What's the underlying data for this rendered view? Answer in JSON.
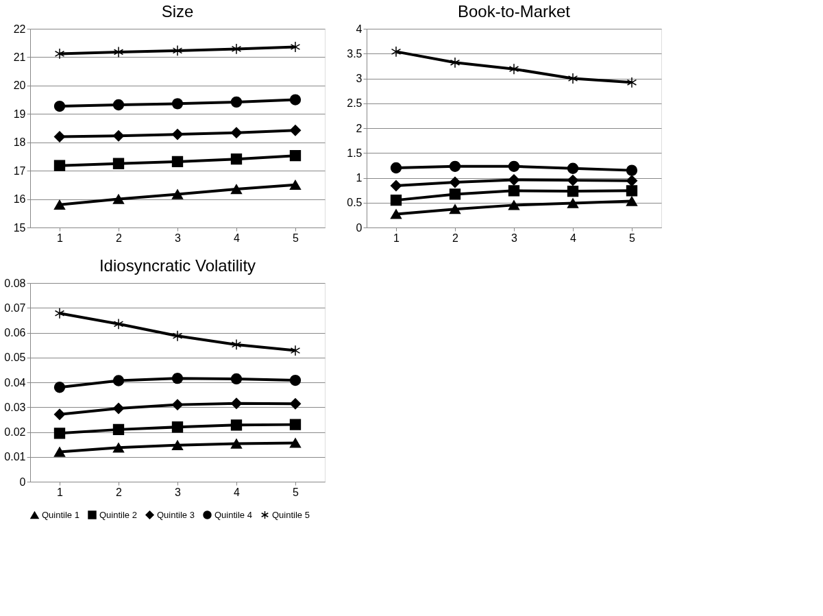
{
  "chart_data": [
    {
      "type": "line",
      "title": "Size",
      "categories": [
        "1",
        "2",
        "3",
        "4",
        "5"
      ],
      "ylim": [
        15,
        22
      ],
      "yticks": [
        15,
        16,
        17,
        18,
        19,
        20,
        21,
        22
      ],
      "grid": "y",
      "legend": "bottom",
      "series": [
        {
          "name": "Quintile 1",
          "color": "#000000",
          "marker": "triangle",
          "values": [
            15.8,
            16.0,
            16.17,
            16.35,
            16.5
          ]
        },
        {
          "name": "Quintile 2",
          "color": "#000000",
          "marker": "square",
          "values": [
            17.18,
            17.25,
            17.32,
            17.41,
            17.53
          ]
        },
        {
          "name": "Quintile 3",
          "color": "#000000",
          "marker": "diamond",
          "values": [
            18.2,
            18.23,
            18.28,
            18.34,
            18.42
          ]
        },
        {
          "name": "Quintile 4",
          "color": "#000000",
          "marker": "circle",
          "values": [
            19.27,
            19.32,
            19.36,
            19.42,
            19.5
          ]
        },
        {
          "name": "Quintile 5",
          "color": "#000000",
          "marker": "cross",
          "values": [
            21.12,
            21.18,
            21.23,
            21.29,
            21.36
          ]
        }
      ]
    },
    {
      "type": "line",
      "title": "Book-to-Market",
      "categories": [
        "1",
        "2",
        "3",
        "4",
        "5"
      ],
      "ylim": [
        0,
        4
      ],
      "yticks": [
        0,
        0.5,
        1,
        1.5,
        2,
        2.5,
        3,
        3.5,
        4
      ],
      "grid": "y",
      "legend": "bottom",
      "series": [
        {
          "name": "Quintile 1",
          "color": "#000000",
          "marker": "triangle",
          "values": [
            0.27,
            0.37,
            0.45,
            0.49,
            0.53
          ]
        },
        {
          "name": "Quintile 2",
          "color": "#000000",
          "marker": "square",
          "values": [
            0.55,
            0.67,
            0.74,
            0.73,
            0.74
          ]
        },
        {
          "name": "Quintile 3",
          "color": "#000000",
          "marker": "diamond",
          "values": [
            0.84,
            0.91,
            0.96,
            0.95,
            0.94
          ]
        },
        {
          "name": "Quintile 4",
          "color": "#000000",
          "marker": "circle",
          "values": [
            1.2,
            1.23,
            1.23,
            1.19,
            1.15
          ]
        },
        {
          "name": "Quintile 5",
          "color": "#000000",
          "marker": "cross",
          "values": [
            3.54,
            3.32,
            3.19,
            3.0,
            2.92
          ]
        }
      ]
    },
    {
      "type": "line",
      "title": "Idiosyncratic Volatility",
      "categories": [
        "1",
        "2",
        "3",
        "4",
        "5"
      ],
      "ylim": [
        0,
        0.08
      ],
      "yticks": [
        0,
        0.01,
        0.02,
        0.03,
        0.04,
        0.05,
        0.06,
        0.07,
        0.08
      ],
      "grid": "y",
      "legend": "bottom",
      "series": [
        {
          "name": "Quintile 1",
          "color": "#000000",
          "marker": "triangle",
          "values": [
            0.012,
            0.0137,
            0.0147,
            0.0153,
            0.0156
          ]
        },
        {
          "name": "Quintile 2",
          "color": "#000000",
          "marker": "square",
          "values": [
            0.0195,
            0.021,
            0.022,
            0.0228,
            0.023
          ]
        },
        {
          "name": "Quintile 3",
          "color": "#000000",
          "marker": "diamond",
          "values": [
            0.0271,
            0.0295,
            0.031,
            0.0315,
            0.0314
          ]
        },
        {
          "name": "Quintile 4",
          "color": "#000000",
          "marker": "circle",
          "values": [
            0.038,
            0.0407,
            0.0416,
            0.0414,
            0.0408
          ]
        },
        {
          "name": "Quintile 5",
          "color": "#000000",
          "marker": "cross",
          "values": [
            0.0678,
            0.0635,
            0.0587,
            0.0552,
            0.0528
          ]
        }
      ]
    }
  ]
}
